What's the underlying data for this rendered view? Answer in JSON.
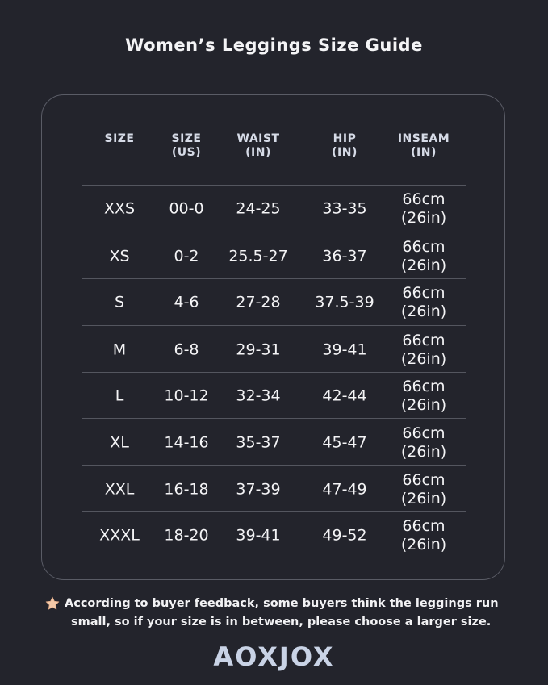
{
  "title": "Women’s Leggings Size Guide",
  "table": {
    "headers": [
      {
        "l1": "SIZE",
        "l2": ""
      },
      {
        "l1": "SIZE",
        "l2": "(US)"
      },
      {
        "l1": "WAIST",
        "l2": "(IN)"
      },
      {
        "l1": "HIP",
        "l2": "(IN)"
      },
      {
        "l1": "INSEAM",
        "l2": "(IN)"
      }
    ],
    "rows": [
      {
        "size": "XXS",
        "us": "00-0",
        "waist": "24-25",
        "hip": "33-35",
        "inseam_cm": "66cm",
        "inseam_in": "(26in)"
      },
      {
        "size": "XS",
        "us": "0-2",
        "waist": "25.5-27",
        "hip": "36-37",
        "inseam_cm": "66cm",
        "inseam_in": "(26in)"
      },
      {
        "size": "S",
        "us": "4-6",
        "waist": "27-28",
        "hip": "37.5-39",
        "inseam_cm": "66cm",
        "inseam_in": "(26in)"
      },
      {
        "size": "M",
        "us": "6-8",
        "waist": "29-31",
        "hip": "39-41",
        "inseam_cm": "66cm",
        "inseam_in": "(26in)"
      },
      {
        "size": "L",
        "us": "10-12",
        "waist": "32-34",
        "hip": "42-44",
        "inseam_cm": "66cm",
        "inseam_in": "(26in)"
      },
      {
        "size": "XL",
        "us": "14-16",
        "waist": "35-37",
        "hip": "45-47",
        "inseam_cm": "66cm",
        "inseam_in": "(26in)"
      },
      {
        "size": "XXL",
        "us": "16-18",
        "waist": "37-39",
        "hip": "47-49",
        "inseam_cm": "66cm",
        "inseam_in": "(26in)"
      },
      {
        "size": "XXXL",
        "us": "18-20",
        "waist": "39-41",
        "hip": "49-52",
        "inseam_cm": "66cm",
        "inseam_in": "(26in)"
      }
    ]
  },
  "note": {
    "icon": "star-icon",
    "line1": "According to buyer feedback, some buyers think the leggings run",
    "line2": "small, so if your size is in between, please choose a larger size."
  },
  "brand": "AOXJOX",
  "colors": {
    "background": "#23242c",
    "header": "#d6dbe7",
    "star": "#f4c9a8",
    "logo": "#c9d3e6"
  }
}
